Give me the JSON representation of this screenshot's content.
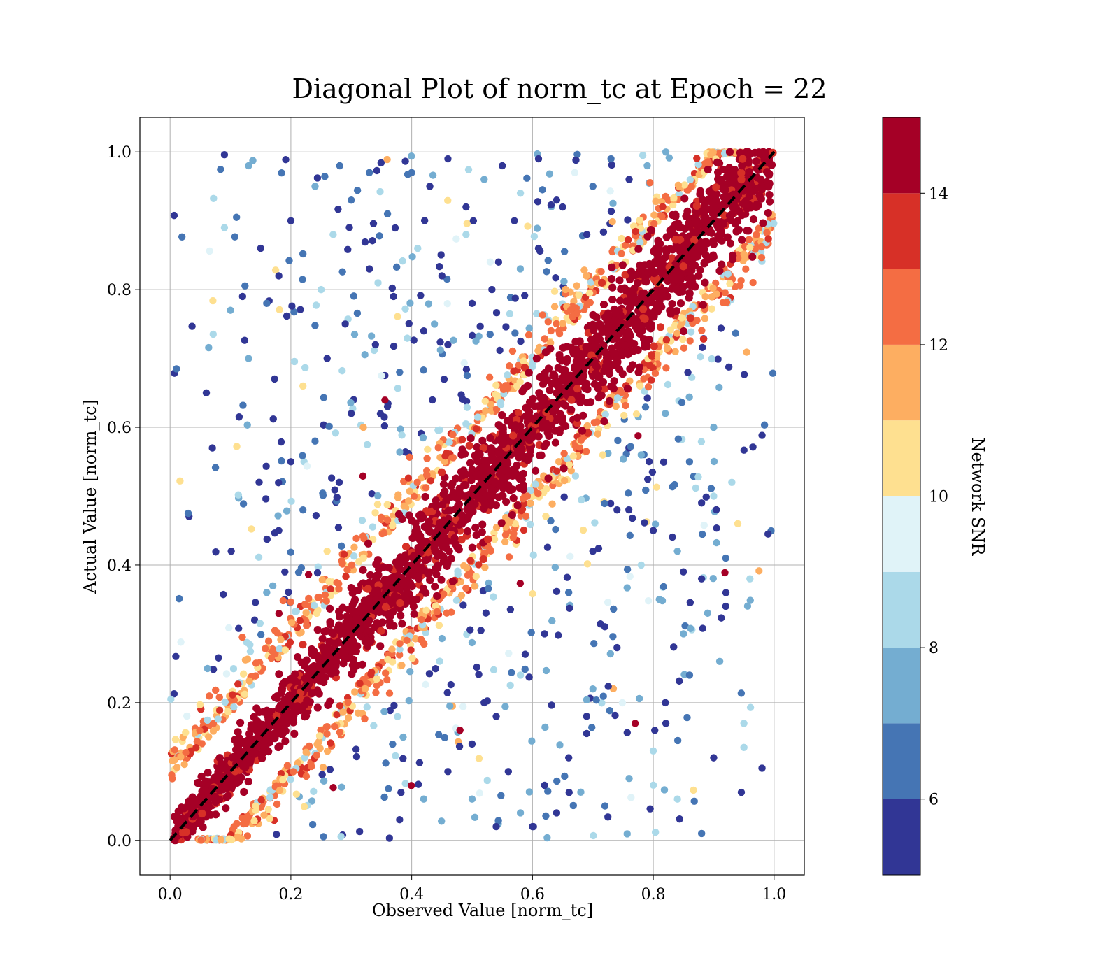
{
  "chart_data": {
    "type": "scatter",
    "title": "Diagonal Plot of norm_tc at Epoch = 22",
    "xlabel": "Observed Value [norm_tc]",
    "ylabel": "Actual Value [norm_tc]",
    "xlim": [
      -0.05,
      1.05
    ],
    "ylim": [
      -0.05,
      1.05
    ],
    "x_ticks": [
      "0.0",
      "0.2",
      "0.4",
      "0.6",
      "0.8",
      "1.0"
    ],
    "y_ticks": [
      "0.0",
      "0.2",
      "0.4",
      "0.6",
      "0.8",
      "1.0"
    ],
    "grid": true,
    "reference_line": {
      "style": "dashed",
      "color": "#000000",
      "from": [
        0,
        0
      ],
      "to": [
        1,
        1
      ]
    },
    "colorbar": {
      "label": "Network SNR",
      "range": [
        5,
        15
      ],
      "ticks": [
        "6",
        "8",
        "10",
        "12",
        "14"
      ],
      "levels": [
        {
          "from": 5,
          "to": 6,
          "color": "#313695"
        },
        {
          "from": 6,
          "to": 7,
          "color": "#4575b4"
        },
        {
          "from": 7,
          "to": 8,
          "color": "#74add1"
        },
        {
          "from": 8,
          "to": 9,
          "color": "#abd9e9"
        },
        {
          "from": 9,
          "to": 10,
          "color": "#e0f3f8"
        },
        {
          "from": 10,
          "to": 11,
          "color": "#fee090"
        },
        {
          "from": 11,
          "to": 12,
          "color": "#fdae61"
        },
        {
          "from": 12,
          "to": 13,
          "color": "#f46d43"
        },
        {
          "from": 13,
          "to": 14,
          "color": "#d73027"
        },
        {
          "from": 14,
          "to": 15,
          "color": "#a50026"
        }
      ]
    },
    "series": [
      {
        "values_description": "",
        "points": [
          [
            0.09,
            0.996
          ],
          [
            0.13,
            0.98
          ],
          [
            0.11,
            0.905
          ],
          [
            0.09,
            0.89
          ],
          [
            0.2,
            0.9
          ],
          [
            0.03,
            0.475
          ],
          [
            0.07,
            0.57
          ],
          [
            0.06,
            0.65
          ],
          [
            0.12,
            0.79
          ],
          [
            0.16,
            0.78
          ],
          [
            0.1,
            0.77
          ],
          [
            0.13,
            0.7
          ],
          [
            0.18,
            0.82
          ],
          [
            0.15,
            0.86
          ],
          [
            0.24,
            0.95
          ],
          [
            0.27,
            0.88
          ],
          [
            0.3,
            0.93
          ],
          [
            0.33,
            0.97
          ],
          [
            0.36,
            0.91
          ],
          [
            0.4,
            0.97
          ],
          [
            0.43,
            0.95
          ],
          [
            0.46,
            0.99
          ],
          [
            0.49,
            0.92
          ],
          [
            0.52,
            0.96
          ],
          [
            0.55,
            0.98
          ],
          [
            0.58,
            0.94
          ],
          [
            0.61,
            0.99
          ],
          [
            0.64,
            0.93
          ],
          [
            0.67,
            0.97
          ],
          [
            0.7,
            0.95
          ],
          [
            0.73,
            0.99
          ],
          [
            0.76,
            0.96
          ],
          [
            0.79,
            0.98
          ],
          [
            0.25,
            0.8
          ],
          [
            0.29,
            0.75
          ],
          [
            0.33,
            0.83
          ],
          [
            0.37,
            0.79
          ],
          [
            0.41,
            0.86
          ],
          [
            0.45,
            0.82
          ],
          [
            0.49,
            0.88
          ],
          [
            0.53,
            0.84
          ],
          [
            0.57,
            0.9
          ],
          [
            0.61,
            0.86
          ],
          [
            0.65,
            0.92
          ],
          [
            0.69,
            0.88
          ],
          [
            0.22,
            0.66
          ],
          [
            0.26,
            0.7
          ],
          [
            0.3,
            0.62
          ],
          [
            0.34,
            0.72
          ],
          [
            0.38,
            0.68
          ],
          [
            0.42,
            0.74
          ],
          [
            0.46,
            0.72
          ],
          [
            0.5,
            0.78
          ],
          [
            0.2,
            0.55
          ],
          [
            0.24,
            0.58
          ],
          [
            0.28,
            0.52
          ],
          [
            0.32,
            0.6
          ],
          [
            0.36,
            0.63
          ],
          [
            0.18,
            0.45
          ],
          [
            0.22,
            0.48
          ],
          [
            0.26,
            0.42
          ],
          [
            0.16,
            0.36
          ],
          [
            0.19,
            0.39
          ],
          [
            0.14,
            0.32
          ],
          [
            0.99,
            0.445
          ],
          [
            0.96,
            0.38
          ],
          [
            0.92,
            0.41
          ],
          [
            0.89,
            0.33
          ],
          [
            0.95,
            0.17
          ],
          [
            0.95,
            0.135
          ],
          [
            0.9,
            0.12
          ],
          [
            0.98,
            0.105
          ],
          [
            0.88,
            0.01
          ],
          [
            0.77,
            0.17
          ],
          [
            0.82,
            0.2
          ],
          [
            0.86,
            0.24
          ],
          [
            0.91,
            0.26
          ],
          [
            0.93,
            0.52
          ],
          [
            0.88,
            0.49
          ],
          [
            0.85,
            0.3
          ],
          [
            0.81,
            0.35
          ],
          [
            0.78,
            0.4
          ],
          [
            0.74,
            0.28
          ],
          [
            0.7,
            0.22
          ],
          [
            0.66,
            0.12
          ],
          [
            0.62,
            0.08
          ],
          [
            0.58,
            0.04
          ],
          [
            0.54,
            0.02
          ],
          [
            0.5,
            0.06
          ],
          [
            0.72,
            0.05
          ],
          [
            0.76,
            0.09
          ],
          [
            0.8,
            0.13
          ],
          [
            0.84,
            0.06
          ],
          [
            0.86,
            0.55
          ],
          [
            0.9,
            0.6
          ],
          [
            0.82,
            0.62
          ],
          [
            0.78,
            0.56
          ],
          [
            0.74,
            0.48
          ],
          [
            0.7,
            0.42
          ],
          [
            0.66,
            0.36
          ],
          [
            0.62,
            0.3
          ],
          [
            0.58,
            0.24
          ],
          [
            0.54,
            0.18
          ],
          [
            0.5,
            0.14
          ],
          [
            0.46,
            0.1
          ],
          [
            0.42,
            0.06
          ],
          [
            0.38,
            0.03
          ],
          [
            0.8,
            0.45
          ],
          [
            0.84,
            0.42
          ],
          [
            0.88,
            0.38
          ],
          [
            0.92,
            0.34
          ],
          [
            0.94,
            0.46
          ],
          [
            0.9,
            0.5
          ],
          [
            0.6,
            0.02
          ],
          [
            0.64,
            0.04
          ],
          [
            0.68,
            0.07
          ],
          [
            0.56,
            0.1
          ],
          [
            0.52,
            0.2
          ],
          [
            0.48,
            0.16
          ]
        ]
      }
    ]
  }
}
